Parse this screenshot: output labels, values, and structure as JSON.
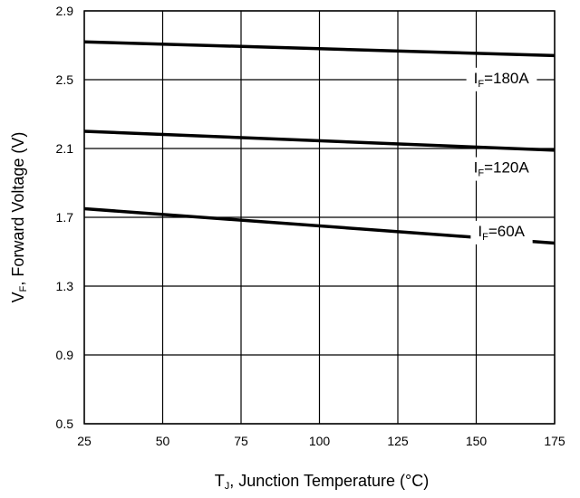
{
  "chart_data": {
    "type": "line",
    "title": "",
    "xlabel": {
      "main": "T",
      "sub": "J",
      "rest": ", Junction Temperature (°C)"
    },
    "ylabel": {
      "main": "V",
      "sub": "F",
      "rest": ", Forward Voltage (V)"
    },
    "xlim": [
      25,
      175
    ],
    "ylim": [
      0.5,
      2.9
    ],
    "xticks": [
      25,
      50,
      75,
      100,
      125,
      150,
      175
    ],
    "yticks": [
      "0.5",
      "0.9",
      "1.3",
      "1.7",
      "2.1",
      "2.5",
      "2.9"
    ],
    "grid": true,
    "series": [
      {
        "name": "I_F=180A",
        "label_main": "I",
        "label_sub": "F",
        "label_rest": "=180A",
        "x": [
          25,
          175
        ],
        "y": [
          2.72,
          2.64
        ],
        "label_at": [
          158,
          2.48
        ]
      },
      {
        "name": "I_F=120A",
        "label_main": "I",
        "label_sub": "F",
        "label_rest": "=120A",
        "x": [
          25,
          175
        ],
        "y": [
          2.2,
          2.09
        ],
        "label_at": [
          158,
          1.96
        ]
      },
      {
        "name": "I_F=60A",
        "label_main": "I",
        "label_sub": "F",
        "label_rest": "=60A",
        "x": [
          25,
          175
        ],
        "y": [
          1.75,
          1.55
        ],
        "label_at": [
          158,
          1.59
        ]
      }
    ]
  }
}
